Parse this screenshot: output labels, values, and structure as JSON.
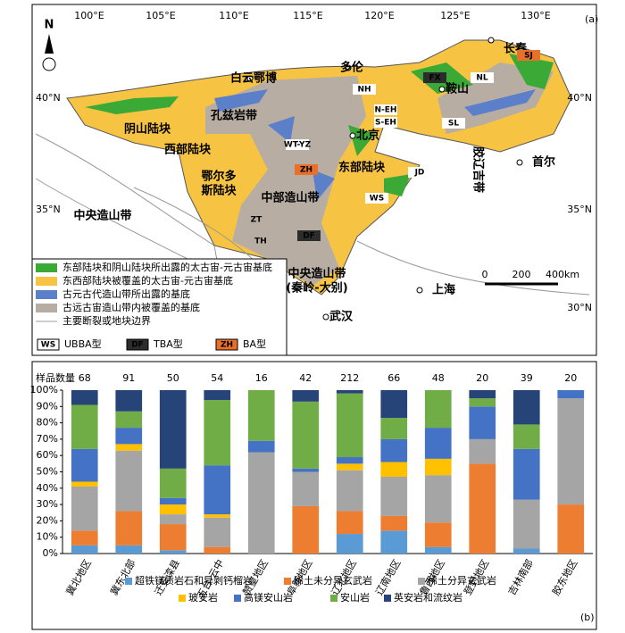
{
  "map": {
    "panel": "(a)",
    "north": "N",
    "longitudes": [
      "100°E",
      "105°E",
      "110°E",
      "115°E",
      "120°E",
      "125°E",
      "130°E"
    ],
    "latitudes_left": [
      "40°N",
      "35°N"
    ],
    "latitudes_right": [
      "40°N",
      "35°N",
      "30°N"
    ],
    "places": [
      "白云鄂博",
      "多伦",
      "长春",
      "北京",
      "鞍山",
      "首尔",
      "上海",
      "武汉"
    ],
    "units": [
      "孔兹岩带",
      "阴山陆块",
      "西部陆块",
      "鄂尔多",
      "斯陆块",
      "中部造山带",
      "东部陆块",
      "胶辽吉带",
      "中央造山带",
      "中央造山带",
      "(秦岭-大别)"
    ],
    "codes": [
      "NH",
      "N-EH",
      "S-EH",
      "WT-YZ",
      "ZH",
      "DF",
      "ZT",
      "TH",
      "WS",
      "JD",
      "FX",
      "SJ",
      "NL",
      "SL"
    ],
    "scale": [
      "0",
      "200",
      "400km"
    ],
    "legend": [
      "东部陆块和阴山陆块所出露的太古宙-元古宙基底",
      "东西部陆块被覆盖的太古宙-元古宙基底",
      "古元古代造山带所出露的基底",
      "古远古宙造山带内被覆盖的基底",
      "主要断裂或地块边界"
    ],
    "type_legend": [
      {
        "code": "WS",
        "label": "UBBA型"
      },
      {
        "code": "DF",
        "label": "TBA型"
      },
      {
        "code": "ZH",
        "label": "BA型"
      }
    ]
  },
  "chart_data": {
    "type": "stacked_bar",
    "panel": "(b)",
    "count_label": "样品数量",
    "categories": [
      "冀北地区",
      "冀东北部",
      "迁安滦县",
      "五台-云中",
      "赞皇地区",
      "阜新地区",
      "辽北地区",
      "辽南地区",
      "鲁西地区",
      "登封地区",
      "吉林南部",
      "胶东地区"
    ],
    "sample_counts": [
      68,
      91,
      50,
      54,
      16,
      42,
      212,
      66,
      48,
      20,
      39,
      20
    ],
    "ylim": [
      0,
      100
    ],
    "yticks": [
      {
        "value": 0,
        "label": "0%"
      },
      {
        "value": 10,
        "label": "10%"
      },
      {
        "value": 20,
        "label": "20%"
      },
      {
        "value": 30,
        "label": "30%"
      },
      {
        "value": 40,
        "label": "40%"
      },
      {
        "value": 50,
        "label": "50%"
      },
      {
        "value": 60,
        "label": "60%"
      },
      {
        "value": 70,
        "label": "70%"
      },
      {
        "value": 80,
        "label": "80%"
      },
      {
        "value": 90,
        "label": "90%"
      },
      {
        "value": 100,
        "label": "100%"
      }
    ],
    "series": [
      {
        "name": "超铁镁质岩石和异剥钙榴岩",
        "color": "#5b9bd5",
        "values": [
          5,
          5,
          2,
          0,
          0,
          0,
          12,
          14,
          4,
          0,
          3,
          0
        ]
      },
      {
        "name": "稀土未分异玄武岩",
        "color": "#ed7d31",
        "values": [
          9,
          21,
          16,
          4,
          0,
          29,
          14,
          9,
          15,
          55,
          0,
          30
        ]
      },
      {
        "name": "稀土分异玄武岩",
        "color": "#a5a5a5",
        "values": [
          27,
          37,
          6,
          18,
          62,
          21,
          25,
          24,
          29,
          15,
          30,
          65
        ]
      },
      {
        "name": "玻安岩",
        "color": "#ffc000",
        "values": [
          3,
          4,
          6,
          2,
          0,
          0,
          4,
          9,
          10,
          0,
          0,
          0
        ]
      },
      {
        "name": "高镁安山岩",
        "color": "#4472c4",
        "values": [
          20,
          10,
          4,
          30,
          7,
          2,
          4,
          14,
          19,
          20,
          31,
          5
        ]
      },
      {
        "name": "安山岩",
        "color": "#70ad47",
        "values": [
          27,
          10,
          18,
          40,
          31,
          41,
          39,
          13,
          23,
          5,
          15,
          0
        ]
      },
      {
        "name": "英安岩和流纹岩",
        "color": "#264478",
        "values": [
          9,
          13,
          48,
          6,
          0,
          7,
          2,
          17,
          0,
          5,
          21,
          0
        ]
      }
    ]
  }
}
